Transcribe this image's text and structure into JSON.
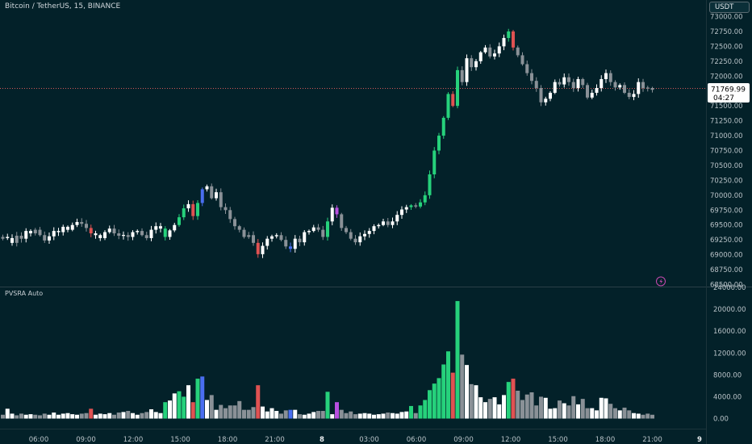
{
  "header": {
    "symbol_title": "Bitcoin / TetherUS, 15, BINANCE"
  },
  "currency_button": "USDT",
  "indicator": {
    "name": "PVSRA Auto"
  },
  "price_label": {
    "value": "71769.99",
    "countdown": "04:27"
  },
  "colors": {
    "background": "#032129",
    "bull": "#ffffff",
    "bear": "#8a9197",
    "climax_bull": "#26d17b",
    "climax_bear": "#e05252",
    "rising_bull": "#4a6ef0",
    "rising_bear": "#b84fe0"
  },
  "chart_data": [
    {
      "type": "candlestick",
      "title": "Bitcoin / TetherUS, 15, BINANCE",
      "ylim": [
        68500,
        73000
      ],
      "y_ticks": [
        "73000.00",
        "72750.00",
        "72500.00",
        "72250.00",
        "72000.00",
        "71750.00",
        "71500.00",
        "71250.00",
        "71000.00",
        "70750.00",
        "70500.00",
        "70250.00",
        "70000.00",
        "69750.00",
        "69500.00",
        "69250.00",
        "69000.00",
        "68750.00",
        "68500.00"
      ],
      "x_ticks": [
        "06:00",
        "09:00",
        "12:00",
        "15:00",
        "18:00",
        "21:00",
        "8",
        "03:00",
        "06:00",
        "09:00",
        "12:00",
        "15:00",
        "18:00",
        "21:00",
        "9"
      ],
      "last_price": 71769.99,
      "color_legend": [
        "bull",
        "bear",
        "climax_bull",
        "climax_bear",
        "rising_bull",
        "rising_bear"
      ],
      "closes": [
        69300,
        69280,
        69200,
        69320,
        69270,
        69400,
        69360,
        69420,
        69330,
        69240,
        69310,
        69400,
        69380,
        69470,
        69420,
        69500,
        69550,
        69520,
        69450,
        69360,
        69330,
        69280,
        69380,
        69440,
        69360,
        69320,
        69330,
        69300,
        69380,
        69400,
        69330,
        69280,
        69420,
        69480,
        69440,
        69300,
        69410,
        69500,
        69630,
        69780,
        69850,
        69650,
        69870,
        70100,
        70150,
        69950,
        70050,
        69800,
        69750,
        69600,
        69480,
        69420,
        69300,
        69330,
        69200,
        69010,
        69150,
        69270,
        69310,
        69330,
        69250,
        69140,
        69100,
        69270,
        69210,
        69380,
        69400,
        69460,
        69420,
        69300,
        69560,
        69790,
        69680,
        69450,
        69380,
        69270,
        69210,
        69310,
        69350,
        69400,
        69480,
        69500,
        69560,
        69500,
        69560,
        69670,
        69760,
        69800,
        69830,
        69810,
        69880,
        70000,
        70350,
        70750,
        71000,
        71300,
        71700,
        71500,
        72100,
        71900,
        72300,
        72150,
        72250,
        72400,
        72480,
        72330,
        72380,
        72500,
        72640,
        72750,
        72480,
        72350,
        72200,
        72050,
        71920,
        71800,
        71560,
        71620,
        71720,
        71900,
        71860,
        71980,
        71900,
        71800,
        71950,
        71850,
        71640,
        71720,
        71800,
        71950,
        72050,
        71900,
        71810,
        71850,
        71720,
        71650,
        71700,
        71900,
        71800,
        71800,
        71770
      ],
      "colors": [
        "bear",
        "bull",
        "bull",
        "bear",
        "bear",
        "bull",
        "bull",
        "bear",
        "bear",
        "bear",
        "bull",
        "bull",
        "bull",
        "bull",
        "bull",
        "bull",
        "bull",
        "bear",
        "bear",
        "climax_bear",
        "bull",
        "bull",
        "bull",
        "bull",
        "bear",
        "bear",
        "bull",
        "bear",
        "bull",
        "bull",
        "bear",
        "bear",
        "bull",
        "bull",
        "bull",
        "climax_bull",
        "bull",
        "bull",
        "climax_bull",
        "climax_bull",
        "bull",
        "climax_bear",
        "climax_bull",
        "rising_bull",
        "bull",
        "bear",
        "bull",
        "bear",
        "bear",
        "bear",
        "bear",
        "bear",
        "bear",
        "bear",
        "bear",
        "climax_bear",
        "bull",
        "bull",
        "bull",
        "bull",
        "bear",
        "bear",
        "rising_bull",
        "bull",
        "bear",
        "bull",
        "bull",
        "bull",
        "bear",
        "bear",
        "climax_bull",
        "bull",
        "rising_bear",
        "bear",
        "bear",
        "bear",
        "bear",
        "bull",
        "bull",
        "bull",
        "bull",
        "bull",
        "bull",
        "bear",
        "bull",
        "bull",
        "bull",
        "bull",
        "climax_bull",
        "bear",
        "climax_bull",
        "climax_bull",
        "climax_bull",
        "climax_bull",
        "climax_bull",
        "climax_bull",
        "climax_bull",
        "climax_bear",
        "climax_bull",
        "bear",
        "bull",
        "bear",
        "bull",
        "bull",
        "bull",
        "bear",
        "bull",
        "bull",
        "bull",
        "climax_bull",
        "climax_bear",
        "bear",
        "bear",
        "bear",
        "bear",
        "bear",
        "bear",
        "bull",
        "bull",
        "bull",
        "bear",
        "bull",
        "bear",
        "bear",
        "bull",
        "bear",
        "bear",
        "bull",
        "bull",
        "bull",
        "bull",
        "bear",
        "bear",
        "bull",
        "bear",
        "bear",
        "bull",
        "bull",
        "bear",
        "bear",
        "bear"
      ]
    },
    {
      "type": "bar",
      "title": "PVSRA Auto",
      "ylim": [
        0,
        24000
      ],
      "y_ticks": [
        "24000.00",
        "20000.00",
        "16000.00",
        "12000.00",
        "8000.00",
        "4000.00",
        "0.00"
      ],
      "values": [
        700,
        1800,
        900,
        600,
        900,
        700,
        800,
        700,
        600,
        900,
        700,
        1100,
        700,
        900,
        1000,
        800,
        700,
        900,
        1000,
        1800,
        700,
        900,
        800,
        1000,
        700,
        1100,
        1200,
        1400,
        1000,
        700,
        1000,
        1200,
        1700,
        1200,
        1000,
        3000,
        3300,
        4600,
        5000,
        4000,
        6100,
        3000,
        7300,
        7700,
        3400,
        4300,
        1600,
        2500,
        1900,
        2400,
        2400,
        3200,
        1600,
        1600,
        2100,
        6100,
        2200,
        1300,
        1900,
        1400,
        900,
        1500,
        1600,
        1600,
        800,
        700,
        900,
        1200,
        1400,
        1400,
        4900,
        800,
        3000,
        1600,
        1000,
        1300,
        800,
        900,
        1000,
        900,
        700,
        800,
        900,
        1100,
        1000,
        900,
        1200,
        1300,
        2300,
        1000,
        2400,
        3400,
        5200,
        6400,
        7400,
        9900,
        12300,
        8400,
        21500,
        11700,
        9800,
        6300,
        6100,
        3900,
        3000,
        3600,
        3900,
        2600,
        4300,
        6700,
        7300,
        5100,
        3400,
        4400,
        4800,
        2400,
        4000,
        3800,
        1800,
        1900,
        3300,
        2800,
        2400,
        4100,
        2600,
        3600,
        1900,
        1900,
        1500,
        3800,
        3700,
        2700,
        1900,
        1500,
        2000,
        1500,
        1000,
        900,
        700,
        900,
        700
      ]
    }
  ]
}
